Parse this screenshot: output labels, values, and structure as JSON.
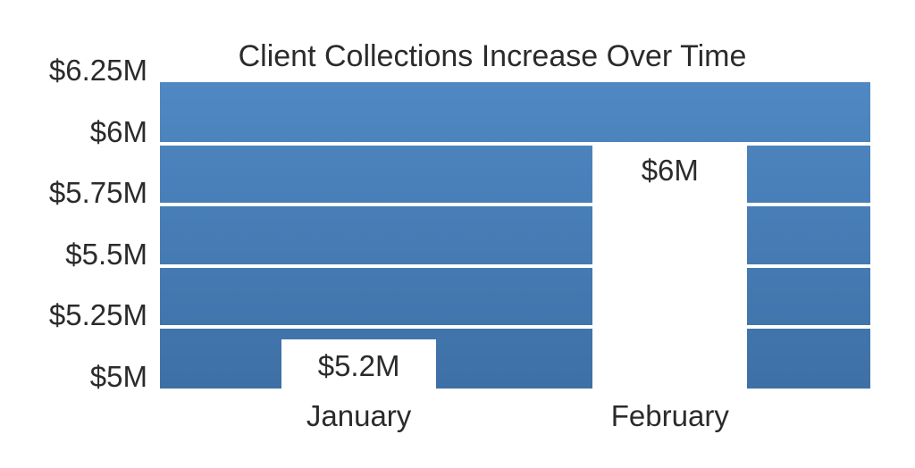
{
  "page": {
    "background": "#ffffff"
  },
  "chart_data": {
    "type": "bar",
    "variant": "white-bars-cut-out-of-blue-gradient-background",
    "title": "Client Collections Increase Over Time",
    "categories": [
      "January",
      "February"
    ],
    "series": [
      {
        "name": "Client Collections",
        "values": [
          5.2,
          6.0
        ]
      }
    ],
    "data_labels": [
      "$5.2M",
      "$6M"
    ],
    "xlabel": "",
    "ylabel": "",
    "ylim": [
      5.0,
      6.25
    ],
    "yticks": [
      {
        "value": 6.25,
        "label": "$6.25M"
      },
      {
        "value": 6.0,
        "label": "$6M"
      },
      {
        "value": 5.75,
        "label": "$5.75M"
      },
      {
        "value": 5.5,
        "label": "$5.5M"
      },
      {
        "value": 5.25,
        "label": "$5.25M"
      },
      {
        "value": 5.0,
        "label": "$5M"
      }
    ],
    "grid": "horizontal-white-lines",
    "legend": "none",
    "colors": {
      "background_gradient_top": "#4f88c3",
      "background_gradient_bottom": "#3e70a6",
      "bar_fill": "#ffffff",
      "gridline": "#ffffff",
      "text": "#2b2b2b"
    }
  }
}
